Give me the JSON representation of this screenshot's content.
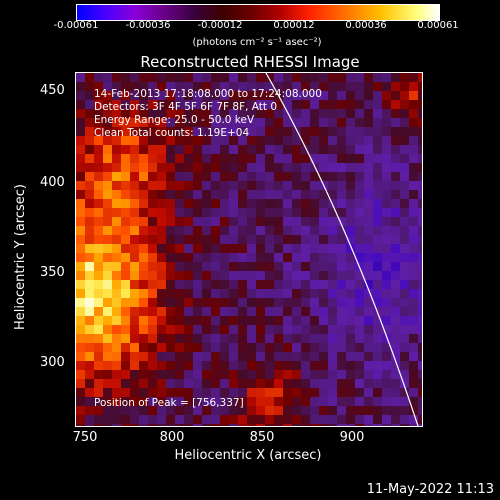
{
  "colorbar": {
    "ticks": [
      "-0.00061",
      "-0.00036",
      "-0.00012",
      "0.00012",
      "0.00036",
      "0.00061"
    ],
    "units": "(photons cm⁻² s⁻¹ asec⁻²)"
  },
  "title": "Reconstructed RHESSI Image",
  "annotations": {
    "time_range": "14-Feb-2013 17:18:08.000 to 17:24:08.000",
    "detectors": "Detectors: 3F 4F 5F 6F 7F 8F, Att 0",
    "energy_range": "Energy Range: 25.0 - 50.0 keV",
    "algorithm": "Clean     Total counts: 1.19E+04",
    "peak": "Position of Peak = [756,337]"
  },
  "x_axis": {
    "label": "Heliocentric X (arcsec)",
    "ticks": [
      "750",
      "800",
      "850",
      "900"
    ]
  },
  "y_axis": {
    "label": "Heliocentric Y (arcsec)",
    "ticks": [
      "450",
      "400",
      "350",
      "300"
    ]
  },
  "footer_timestamp": "11-May-2022 11:13",
  "colors": {
    "background": "#000000",
    "text": "#ffffff",
    "limb_line": "#ffffff"
  }
}
